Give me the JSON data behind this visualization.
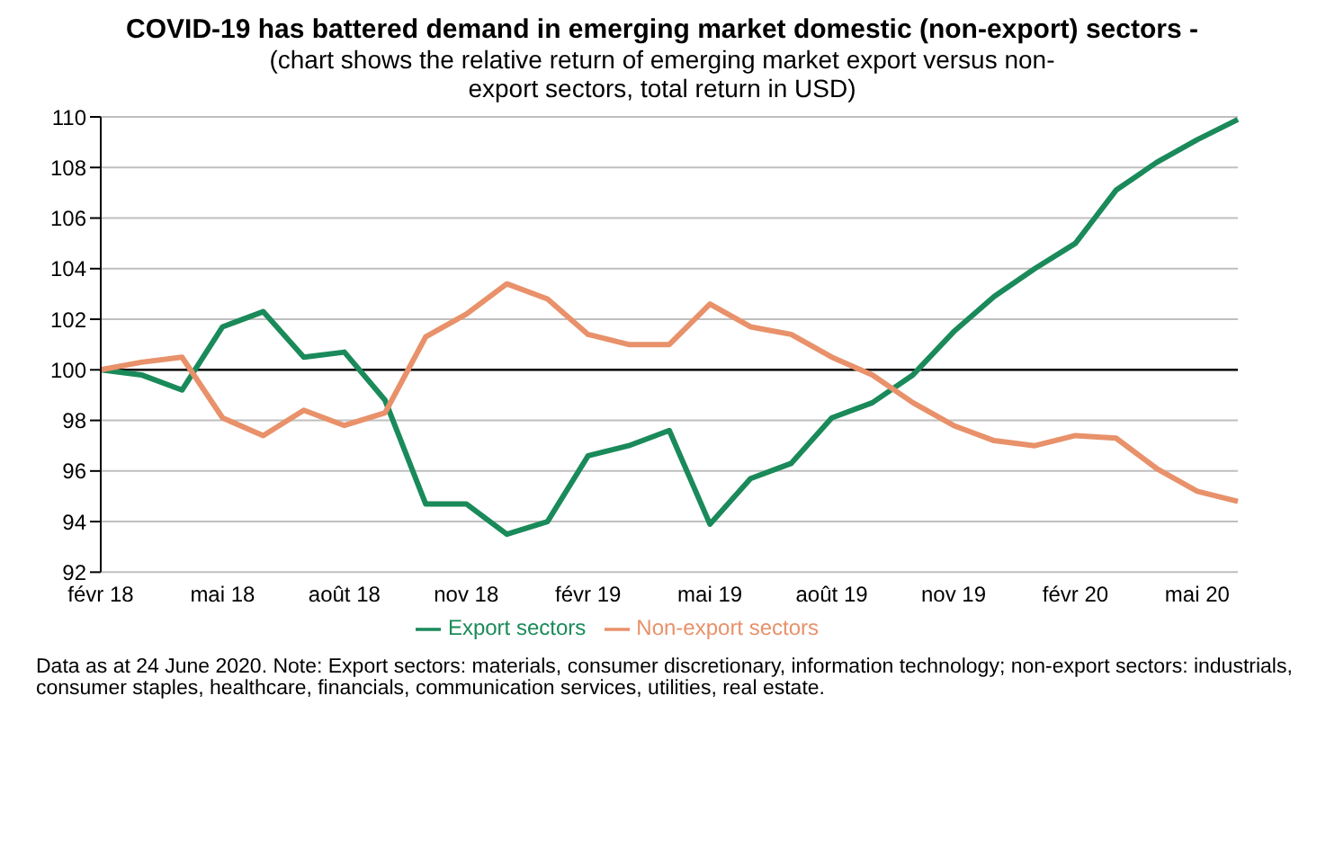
{
  "chart_data": {
    "type": "line",
    "title": "COVID-19 has battered demand in emerging market domestic (non-export) sectors -",
    "subtitle": "(chart shows the relative return of emerging market export versus non-export sectors, total return in USD)",
    "categories": [
      "févr 18",
      null,
      null,
      "mai 18",
      null,
      null,
      "août 18",
      null,
      null,
      "nov 18",
      null,
      null,
      "févr 19",
      null,
      null,
      "mai 19",
      null,
      null,
      "août 19",
      null,
      null,
      "nov 19",
      null,
      null,
      "févr 20",
      null,
      null,
      "mai 20",
      null
    ],
    "series": [
      {
        "name": "Export sectors",
        "color": "#1a8a5a",
        "values": [
          100,
          99.8,
          99.2,
          101.7,
          102.3,
          100.5,
          100.7,
          98.8,
          94.7,
          94.7,
          93.5,
          94.0,
          96.6,
          97.0,
          97.6,
          93.9,
          95.7,
          96.3,
          98.1,
          98.7,
          99.8,
          101.5,
          102.9,
          104.0,
          105.0,
          107.1,
          108.2,
          109.1,
          109.9
        ]
      },
      {
        "name": "Non-export sectors",
        "color": "#e8916a",
        "values": [
          100,
          100.3,
          100.5,
          98.1,
          97.4,
          98.4,
          97.8,
          98.3,
          101.3,
          102.2,
          103.4,
          102.8,
          101.4,
          101.0,
          101.0,
          102.6,
          101.7,
          101.4,
          100.5,
          99.8,
          98.7,
          97.8,
          97.2,
          97.0,
          97.4,
          97.3,
          96.1,
          95.2,
          94.8
        ]
      }
    ],
    "ylim": [
      92,
      110
    ],
    "yticks": [
      92,
      94,
      96,
      98,
      100,
      102,
      104,
      106,
      108,
      110
    ],
    "grid": "y",
    "legend": "bottom",
    "ref_lines": [
      {
        "axis": "y",
        "value": 100,
        "label": null,
        "color": "#000000"
      }
    ],
    "annotations": [
      "Data as at 24 June 2020. Note: Export sectors: materials, consumer discretionary, information technology; non-export sectors: industrials, consumer staples, healthcare, financials, communication services, utilities, real estate."
    ]
  }
}
